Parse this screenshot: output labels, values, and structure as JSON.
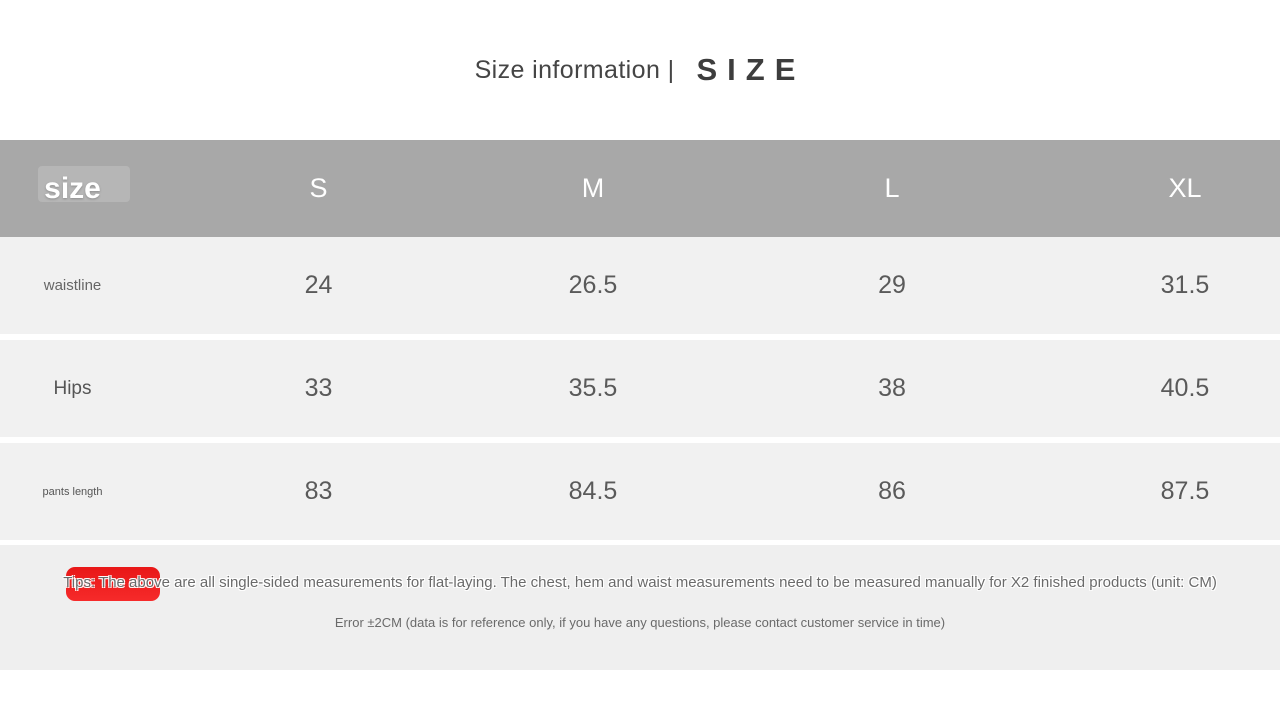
{
  "title": {
    "main": "Size information |",
    "accent": "SIZE"
  },
  "chart_data": {
    "type": "table",
    "title": "Size information | SIZE",
    "columns": [
      "size",
      "S",
      "M",
      "L",
      "XL"
    ],
    "rows": [
      [
        "waistline",
        24,
        26.5,
        29,
        31.5
      ],
      [
        "Hips",
        33,
        35.5,
        38,
        40.5
      ],
      [
        "pants length",
        83,
        84.5,
        86,
        87.5
      ]
    ],
    "unit": "CM"
  },
  "notes": {
    "line1": "Tips: The above are all single-sided measurements for flat-laying. The chest, hem and waist measurements need to be measured manually for X2 finished products (unit: CM)",
    "line2": "Error ±2CM (data is for reference only, if you have any questions, please contact customer service in time)"
  },
  "colors": {
    "header_gray": "#a8a8a8",
    "row_bg": "#f1f1f1",
    "tips_bg": "#efefef",
    "badge_red": "#f21c1c",
    "text_gray": "#5a5a5a"
  }
}
